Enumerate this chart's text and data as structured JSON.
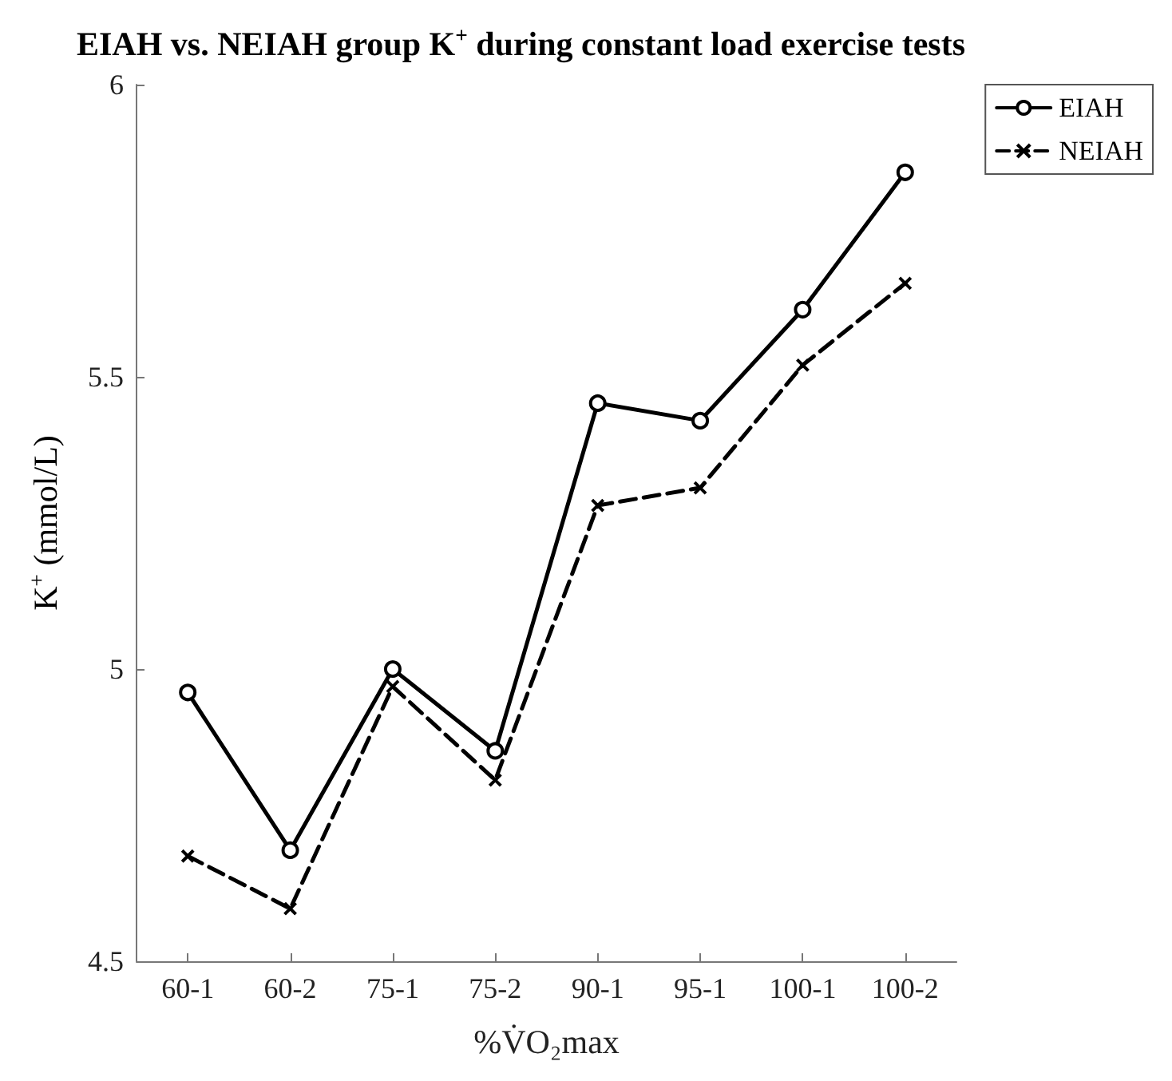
{
  "chart_data": {
    "type": "line",
    "title": "EIAH vs. NEIAH group K$^{+}$ during constant load exercise tests",
    "xlabel": "%V̇O₂max",
    "ylabel": "K$^{+}$ (mmol/L)",
    "categories": [
      "60-1",
      "60-2",
      "75-1",
      "75-2",
      "90-1",
      "95-1",
      "100-1",
      "100-2"
    ],
    "series": [
      {
        "name": "EIAH",
        "color": "#000000",
        "marker": "circle",
        "line_style": "solid",
        "values": [
          4.96,
          4.69,
          5.0,
          4.86,
          5.455,
          5.425,
          5.615,
          5.85
        ]
      },
      {
        "name": "NEIAH",
        "color": "#000000",
        "marker": "cross",
        "line_style": "dashed",
        "values": [
          4.68,
          4.59,
          4.97,
          4.81,
          5.28,
          5.31,
          5.52,
          5.66
        ]
      }
    ],
    "ylim": [
      4.5,
      6
    ],
    "yticks": [
      4.5,
      5,
      5.5,
      6
    ],
    "grid": false,
    "legend": "top right"
  }
}
